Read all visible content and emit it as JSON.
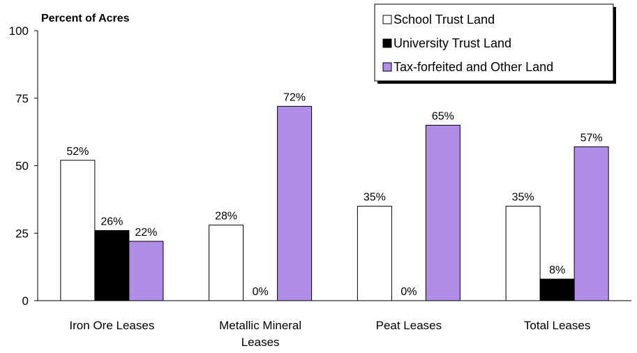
{
  "chart_data": {
    "type": "bar",
    "ylabel": "Percent of Acres",
    "ylim": [
      0,
      100
    ],
    "yticks": [
      0,
      25,
      50,
      75,
      100
    ],
    "categories": [
      [
        "Iron Ore Leases"
      ],
      [
        "Metallic Mineral",
        "Leases"
      ],
      [
        "Peat Leases"
      ],
      [
        "Total Leases"
      ]
    ],
    "series": [
      {
        "name": "School Trust Land",
        "color": "#ffffff",
        "values": [
          52,
          28,
          35,
          35
        ],
        "labels": [
          "52%",
          "28%",
          "35%",
          "35%"
        ]
      },
      {
        "name": "University Trust Land",
        "color": "#000000",
        "values": [
          26,
          0,
          0,
          8
        ],
        "labels": [
          "26%",
          "0%",
          "0%",
          "8%"
        ]
      },
      {
        "name": "Tax-forfeited and Other Land",
        "color": "#b08ee8",
        "values": [
          22,
          72,
          65,
          57
        ],
        "labels": [
          "22%",
          "72%",
          "65%",
          "57%"
        ]
      }
    ],
    "legend_position": "top-right",
    "grid": false
  }
}
